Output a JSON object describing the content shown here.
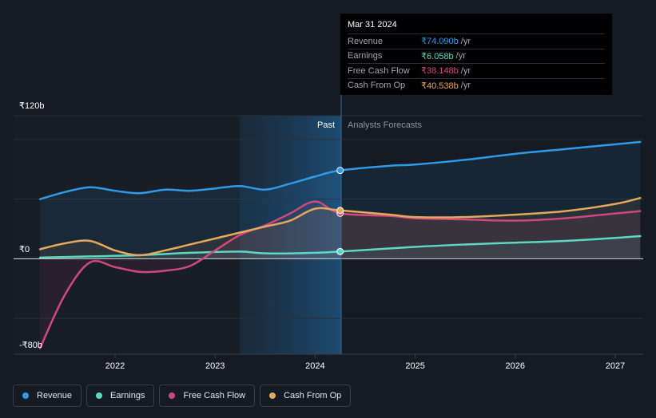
{
  "chart_data": {
    "type": "line",
    "y_axis": {
      "top_label": "₹120b",
      "zero_label": "₹0",
      "bottom_label": "-₹80b",
      "ylim": [
        -80,
        120
      ]
    },
    "x_ticks": [
      "2022",
      "2023",
      "2024",
      "2025",
      "2026",
      "2027"
    ],
    "past_label": "Past",
    "forecast_label": "Analysts Forecasts",
    "series": [
      {
        "name": "Revenue",
        "color": "#2f9be8",
        "points": [
          [
            2021.25,
            50
          ],
          [
            2021.5,
            56
          ],
          [
            2021.75,
            60
          ],
          [
            2022.0,
            57
          ],
          [
            2022.25,
            55
          ],
          [
            2022.5,
            58
          ],
          [
            2022.75,
            57
          ],
          [
            2023.0,
            59
          ],
          [
            2023.25,
            61
          ],
          [
            2023.5,
            58
          ],
          [
            2023.75,
            63
          ],
          [
            2024.0,
            69
          ],
          [
            2024.25,
            74.09
          ]
        ],
        "forecast": [
          [
            2024.25,
            74.09
          ],
          [
            2024.75,
            78
          ],
          [
            2025.0,
            79
          ],
          [
            2025.5,
            83
          ],
          [
            2026.0,
            88
          ],
          [
            2026.5,
            92
          ],
          [
            2027.0,
            96
          ],
          [
            2027.25,
            98
          ]
        ]
      },
      {
        "name": "Earnings",
        "color": "#5ed8c4",
        "points": [
          [
            2021.25,
            1
          ],
          [
            2021.75,
            2
          ],
          [
            2022.25,
            3
          ],
          [
            2022.75,
            5
          ],
          [
            2023.25,
            6
          ],
          [
            2023.5,
            4.5
          ],
          [
            2024.0,
            5
          ],
          [
            2024.25,
            6.058
          ]
        ],
        "forecast": [
          [
            2024.25,
            6.058
          ],
          [
            2025.0,
            10
          ],
          [
            2025.5,
            12
          ],
          [
            2026.0,
            13.5
          ],
          [
            2026.5,
            15
          ],
          [
            2027.0,
            17.5
          ],
          [
            2027.25,
            19
          ]
        ]
      },
      {
        "name": "Free Cash Flow",
        "color": "#d1487f",
        "points": [
          [
            2021.25,
            -75
          ],
          [
            2021.5,
            -30
          ],
          [
            2021.75,
            -3
          ],
          [
            2022.0,
            -7
          ],
          [
            2022.25,
            -11
          ],
          [
            2022.5,
            -10
          ],
          [
            2022.75,
            -6
          ],
          [
            2023.0,
            7
          ],
          [
            2023.25,
            20
          ],
          [
            2023.5,
            28
          ],
          [
            2023.75,
            38
          ],
          [
            2024.0,
            48
          ],
          [
            2024.25,
            38.148
          ]
        ],
        "forecast": [
          [
            2024.25,
            38.148
          ],
          [
            2024.75,
            36
          ],
          [
            2025.0,
            34
          ],
          [
            2025.5,
            33
          ],
          [
            2026.0,
            32
          ],
          [
            2026.5,
            34
          ],
          [
            2027.0,
            38
          ],
          [
            2027.25,
            40
          ]
        ]
      },
      {
        "name": "Cash From Op",
        "color": "#e6a85c",
        "points": [
          [
            2021.25,
            8
          ],
          [
            2021.5,
            13
          ],
          [
            2021.75,
            15
          ],
          [
            2022.0,
            7
          ],
          [
            2022.25,
            3
          ],
          [
            2022.5,
            7
          ],
          [
            2022.75,
            12
          ],
          [
            2023.0,
            17
          ],
          [
            2023.25,
            22
          ],
          [
            2023.5,
            27
          ],
          [
            2023.75,
            32
          ],
          [
            2024.0,
            42
          ],
          [
            2024.25,
            40.538
          ]
        ],
        "forecast": [
          [
            2024.25,
            40.538
          ],
          [
            2024.75,
            37
          ],
          [
            2025.0,
            35
          ],
          [
            2025.5,
            35
          ],
          [
            2026.0,
            37
          ],
          [
            2026.5,
            40
          ],
          [
            2027.0,
            46
          ],
          [
            2027.25,
            51
          ]
        ]
      }
    ]
  },
  "tooltip": {
    "date": "Mar 31 2024",
    "unit": "/yr",
    "rows": [
      {
        "name": "Revenue",
        "value": "₹74.090b",
        "color": "#2f9be8"
      },
      {
        "name": "Earnings",
        "value": "₹6.058b",
        "color": "#5ed8c4"
      },
      {
        "name": "Free Cash Flow",
        "value": "₹38.148b",
        "color": "#d1487f"
      },
      {
        "name": "Cash From Op",
        "value": "₹40.538b",
        "color": "#e6a85c"
      }
    ]
  },
  "legend": [
    {
      "label": "Revenue",
      "color": "#2f9be8"
    },
    {
      "label": "Earnings",
      "color": "#5ed8c4"
    },
    {
      "label": "Free Cash Flow",
      "color": "#d1487f"
    },
    {
      "label": "Cash From Op",
      "color": "#e6a85c"
    }
  ]
}
